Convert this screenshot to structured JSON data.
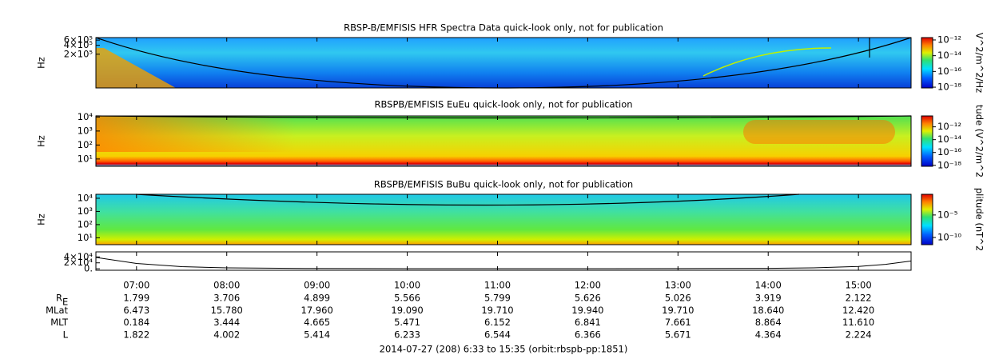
{
  "chart_data": [
    {
      "type": "spectrogram",
      "title": "RBSP-B/EMFISIS  HFR Spectra Data quick-look only, not for publication",
      "ylabel": "Hz",
      "ylog": true,
      "ylim": [
        14500,
        730000
      ],
      "yticks": [
        {
          "value": 200000,
          "label": "2×10⁵"
        },
        {
          "value": 400000,
          "label": "4×10⁵"
        },
        {
          "value": 600000,
          "label": "6×10⁵"
        }
      ],
      "colorbar": {
        "label": "V^2/m^2/Hz",
        "log": true,
        "zlim": [
          8e-19,
          2e-12
        ],
        "ticks": [
          {
            "value": 1e-12,
            "label": "10⁻¹²"
          },
          {
            "value": 1e-14,
            "label": "10⁻¹⁴"
          },
          {
            "value": 1e-16,
            "label": "10⁻¹⁶"
          },
          {
            "value": 1e-18,
            "label": "10⁻¹⁸"
          }
        ]
      }
    },
    {
      "type": "spectrogram",
      "title": "RBSPB/EMFISIS  EuEu quick-look only, not for publication",
      "ylabel": "Hz",
      "ylog": true,
      "ylim": [
        3,
        12000
      ],
      "yticks": [
        {
          "value": 10,
          "label": "10¹"
        },
        {
          "value": 100,
          "label": "10²"
        },
        {
          "value": 1000,
          "label": "10³"
        },
        {
          "value": 10000,
          "label": "10⁴"
        }
      ],
      "colorbar": {
        "label": "tude (V^2/m^2",
        "log": true,
        "zlim": [
          7e-19,
          5e-11
        ],
        "ticks": [
          {
            "value": 1e-12,
            "label": "10⁻¹²"
          },
          {
            "value": 1e-14,
            "label": "10⁻¹⁴"
          },
          {
            "value": 1e-16,
            "label": "10⁻¹⁶"
          },
          {
            "value": 1e-18,
            "label": "10⁻¹⁸"
          }
        ]
      }
    },
    {
      "type": "spectrogram",
      "title": "RBSPB/EMFISIS  BuBu quick-look only, not for publication",
      "ylabel": "Hz",
      "ylog": true,
      "ylim": [
        3,
        20000
      ],
      "yticks": [
        {
          "value": 10,
          "label": "10¹"
        },
        {
          "value": 100,
          "label": "10²"
        },
        {
          "value": 1000,
          "label": "10³"
        },
        {
          "value": 10000,
          "label": "10⁴"
        }
      ],
      "colorbar": {
        "label": "plitude (nT^2",
        "log": true,
        "zlim": [
          2.5e-12,
          0.4
        ],
        "ticks": [
          {
            "value": 1e-05,
            "label": "10⁻⁵"
          },
          {
            "value": 1e-10,
            "label": "10⁻¹⁰"
          }
        ]
      }
    },
    {
      "type": "line",
      "ylim": [
        -5000,
        57000
      ],
      "yticks": [
        {
          "value": 0,
          "label": "0."
        },
        {
          "value": 20000,
          "label": "2×10⁴"
        },
        {
          "value": 40000,
          "label": "4×10⁴"
        }
      ],
      "x": [
        6.55,
        7,
        7.5,
        8,
        9,
        10,
        11,
        12,
        13,
        14,
        14.5,
        15,
        15.3,
        15.58
      ],
      "values": [
        38000,
        18000,
        7000,
        3000,
        1000,
        500,
        400,
        400,
        600,
        1500,
        3000,
        8000,
        15000,
        26000
      ]
    }
  ],
  "time_axis": {
    "xlim": [
      6.55,
      15.5833
    ],
    "xticks": [
      {
        "value": 7,
        "label": "07:00"
      },
      {
        "value": 8,
        "label": "08:00"
      },
      {
        "value": 9,
        "label": "09:00"
      },
      {
        "value": 10,
        "label": "10:00"
      },
      {
        "value": 11,
        "label": "11:00"
      },
      {
        "value": 12,
        "label": "12:00"
      },
      {
        "value": 13,
        "label": "13:00"
      },
      {
        "value": 14,
        "label": "14:00"
      },
      {
        "value": 15,
        "label": "15:00"
      }
    ]
  },
  "ephemeris": [
    {
      "label": "R",
      "subscript": "E",
      "values": [
        "1.799",
        "3.706",
        "4.899",
        "5.566",
        "5.799",
        "5.626",
        "5.026",
        "3.919",
        "2.122"
      ]
    },
    {
      "label": "MLat",
      "values": [
        "6.473",
        "15.780",
        "17.960",
        "19.090",
        "19.710",
        "19.940",
        "19.710",
        "18.640",
        "12.420"
      ]
    },
    {
      "label": "MLT",
      "values": [
        "0.184",
        "3.444",
        "4.665",
        "5.471",
        "6.152",
        "6.841",
        "7.661",
        "8.864",
        "11.610"
      ]
    },
    {
      "label": "L",
      "values": [
        "1.822",
        "4.002",
        "5.414",
        "6.233",
        "6.544",
        "6.366",
        "5.671",
        "4.364",
        "2.224"
      ]
    }
  ],
  "footer": "2014-07-27 (208) 6:33 to 15:35 (orbit:rbspb-pp:1851)"
}
